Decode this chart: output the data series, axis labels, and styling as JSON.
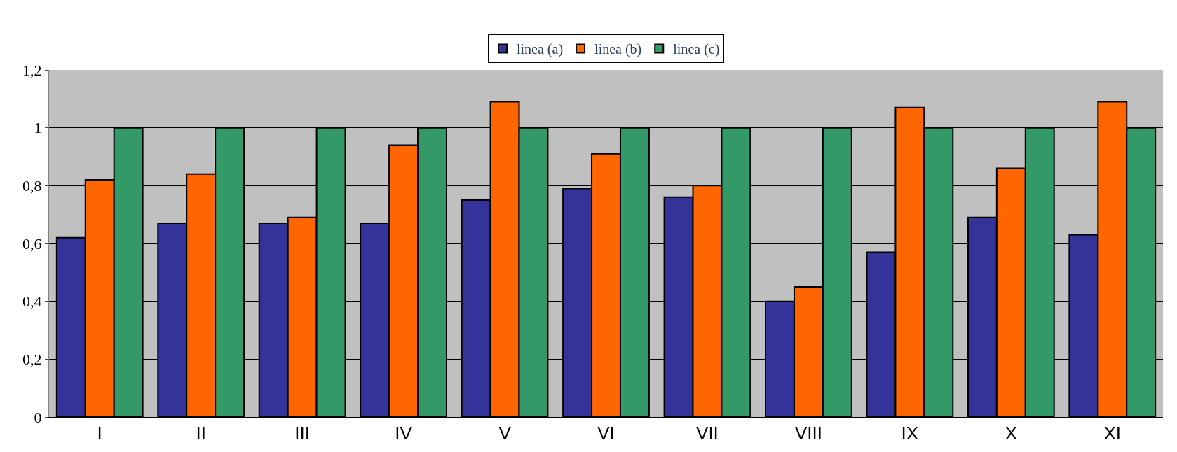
{
  "chart_data": {
    "type": "bar",
    "categories": [
      "I",
      "II",
      "III",
      "IV",
      "V",
      "VI",
      "VII",
      "VIII",
      "IX",
      "X",
      "XI"
    ],
    "series": [
      {
        "name": "linea (a)",
        "color": "#333399",
        "values": [
          0.62,
          0.67,
          0.67,
          0.67,
          0.75,
          0.79,
          0.76,
          0.4,
          0.57,
          0.69,
          0.63
        ]
      },
      {
        "name": "linea (b)",
        "color": "#ff6600",
        "values": [
          0.82,
          0.84,
          0.69,
          0.94,
          1.09,
          0.91,
          0.8,
          0.45,
          1.07,
          0.86,
          1.09
        ]
      },
      {
        "name": "linea (c)",
        "color": "#339966",
        "values": [
          1.0,
          1.0,
          1.0,
          1.0,
          1.0,
          1.0,
          1.0,
          1.0,
          1.0,
          1.0,
          1.0
        ]
      }
    ],
    "ylim": [
      0,
      1.2
    ],
    "yticks": [
      0,
      {
        "value": 0.2,
        "label": "0,2"
      },
      {
        "value": 0.4,
        "label": "0,4"
      },
      {
        "value": 0.6,
        "label": "0,6"
      },
      {
        "value": 0.8,
        "label": "0,8"
      },
      1,
      {
        "value": 1.2,
        "label": "1,2"
      }
    ],
    "grid": "y",
    "legend": "top"
  }
}
